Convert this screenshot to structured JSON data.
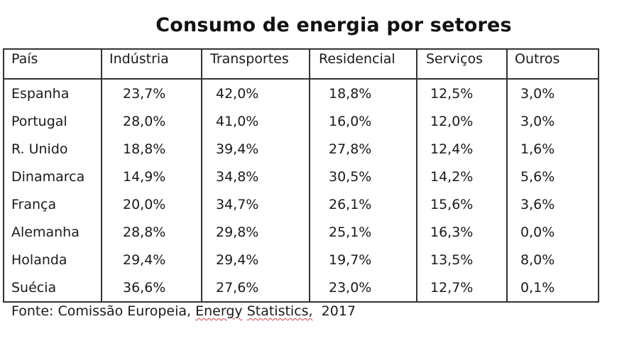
{
  "title": "Consumo de energia por setores",
  "table": {
    "headers": [
      "País",
      "Indústria",
      "Transportes",
      "Residencial",
      "Serviços",
      "Outros"
    ],
    "rows": [
      [
        "Espanha",
        "23,7%",
        "42,0%",
        "18,8%",
        "12,5%",
        "3,0%"
      ],
      [
        "Portugal",
        "28,0%",
        "41,0%",
        "16,0%",
        "12,0%",
        "3,0%"
      ],
      [
        "R. Unido",
        "18,8%",
        "39,4%",
        "27,8%",
        "12,4%",
        "1,6%"
      ],
      [
        "Dinamarca",
        "14,9%",
        "34,8%",
        "30,5%",
        "14,2%",
        "5,6%"
      ],
      [
        "França",
        "20,0%",
        "34,7%",
        "26,1%",
        "15,6%",
        "3,6%"
      ],
      [
        "Alemanha",
        "28,8%",
        "29,8%",
        "25,1%",
        "16,3%",
        "0,0%"
      ],
      [
        "Holanda",
        "29,4%",
        "29,4%",
        "19,7%",
        "13,5%",
        "8,0%"
      ],
      [
        "Suécia",
        "36,6%",
        "27,6%",
        "23,0%",
        "12,7%",
        "0,1%"
      ]
    ]
  },
  "source": {
    "prefix": "Fonte: Comissão Europeia, ",
    "word1": "Energy",
    "space": " ",
    "word2": "Statistics,",
    "suffix": "  2017"
  }
}
